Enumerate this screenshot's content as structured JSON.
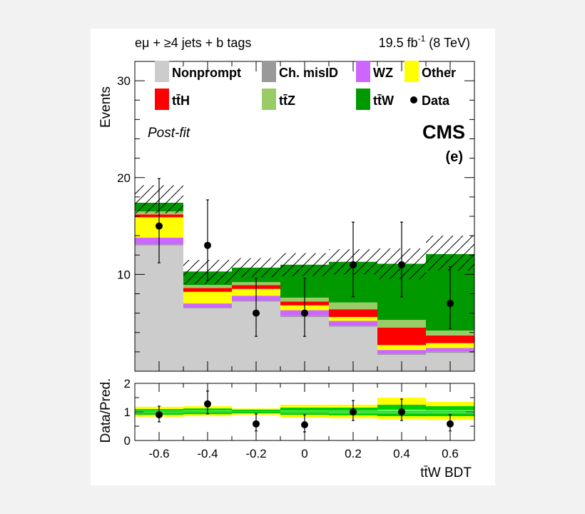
{
  "figure": {
    "header_left": "eμ + ≥4 jets + b tags",
    "header_right_lumi": "19.5 fb",
    "header_right_exp": "-1",
    "header_right_energy": " (8 TeV)",
    "experiment": "CMS",
    "panel": "(e)",
    "fit_note": "Post-fit"
  },
  "legend": [
    {
      "label": "Nonprompt",
      "color": "#cccccc"
    },
    {
      "label": "Ch. misID",
      "color": "#999999"
    },
    {
      "label": "WZ",
      "color": "#cc66ff"
    },
    {
      "label": "Other",
      "color": "#ffff00"
    },
    {
      "label": "tt̄H",
      "color": "#ff0000"
    },
    {
      "label": "tt̄Z",
      "color": "#99cc66"
    },
    {
      "label": "tt̄W",
      "color": "#009900"
    },
    {
      "label": "Data",
      "color": "#000000"
    }
  ],
  "chart_data": [
    {
      "type": "bar",
      "stacked": true,
      "xlabel": "tt̄W BDT",
      "ylabel": "Events",
      "xlim": [
        -0.7,
        0.7
      ],
      "ylim": [
        0,
        32
      ],
      "yticks": [
        10,
        20,
        30
      ],
      "xticks": [
        -0.6,
        -0.4,
        -0.2,
        0,
        0.2,
        0.4,
        0.6
      ],
      "bin_edges": [
        -0.7,
        -0.5,
        -0.3,
        -0.1,
        0.1,
        0.3,
        0.5,
        0.7
      ],
      "series": [
        {
          "name": "Nonprompt",
          "color": "#cccccc",
          "values": [
            13.0,
            6.5,
            7.2,
            5.6,
            4.6,
            1.7,
            1.9
          ]
        },
        {
          "name": "Ch. misID",
          "color": "#999999",
          "values": [
            0.1,
            0.1,
            0.1,
            0.1,
            0.1,
            0.1,
            0.1
          ]
        },
        {
          "name": "WZ",
          "color": "#cc66ff",
          "values": [
            0.7,
            0.4,
            0.5,
            0.6,
            0.5,
            0.4,
            0.4
          ]
        },
        {
          "name": "Other",
          "color": "#ffff00",
          "values": [
            2.1,
            1.2,
            0.7,
            0.5,
            0.4,
            0.5,
            0.5
          ]
        },
        {
          "name": "tt̄H",
          "color": "#ff0000",
          "values": [
            0.3,
            0.4,
            0.4,
            0.4,
            0.8,
            1.8,
            0.8
          ]
        },
        {
          "name": "tt̄Z",
          "color": "#99cc66",
          "values": [
            0.3,
            0.3,
            0.3,
            0.4,
            0.7,
            0.8,
            0.5
          ]
        },
        {
          "name": "tt̄W",
          "color": "#009900",
          "values": [
            0.9,
            1.4,
            1.5,
            3.4,
            4.2,
            5.8,
            7.9
          ]
        }
      ],
      "uncertainty_band": [
        [
          16.3,
          19.2
        ],
        [
          9.0,
          11.5
        ],
        [
          9.7,
          11.7
        ],
        [
          9.8,
          12.2
        ],
        [
          10.0,
          12.6
        ],
        [
          9.5,
          12.7
        ],
        [
          10.4,
          14.0
        ]
      ],
      "data": {
        "x": [
          -0.6,
          -0.4,
          -0.2,
          0,
          0.2,
          0.4,
          0.6
        ],
        "y": [
          15,
          13,
          6,
          6,
          11,
          11,
          7
        ],
        "err_low": [
          3.8,
          3.6,
          2.4,
          2.4,
          3.3,
          3.3,
          2.6
        ],
        "err_high": [
          4.9,
          4.7,
          3.6,
          3.6,
          4.4,
          4.4,
          3.8
        ]
      }
    },
    {
      "type": "scatter",
      "xlabel": "tt̄W BDT",
      "ylabel": "Data/Pred.",
      "xlim": [
        -0.7,
        0.7
      ],
      "ylim": [
        0,
        2
      ],
      "yticks": [
        0,
        1,
        2
      ],
      "band_yellow": [
        [
          0.83,
          1.18
        ],
        [
          0.85,
          1.2
        ],
        [
          0.9,
          1.12
        ],
        [
          0.8,
          1.25
        ],
        [
          0.78,
          1.25
        ],
        [
          0.75,
          1.5
        ],
        [
          0.72,
          1.35
        ]
      ],
      "band_green": [
        [
          0.9,
          1.1
        ],
        [
          0.92,
          1.12
        ],
        [
          0.95,
          1.08
        ],
        [
          0.9,
          1.15
        ],
        [
          0.88,
          1.15
        ],
        [
          0.85,
          1.25
        ],
        [
          0.85,
          1.2
        ]
      ],
      "band_lightgreen": [
        [
          0.96,
          1.04
        ],
        [
          0.97,
          1.05
        ],
        [
          0.98,
          1.03
        ],
        [
          0.96,
          1.05
        ],
        [
          0.95,
          1.05
        ],
        [
          0.95,
          1.08
        ],
        [
          0.95,
          1.06
        ]
      ],
      "ratio": {
        "x": [
          -0.6,
          -0.4,
          -0.2,
          0,
          0.2,
          0.4,
          0.6
        ],
        "y": [
          0.9,
          1.28,
          0.58,
          0.55,
          1.0,
          1.0,
          0.58
        ],
        "err_low": [
          0.25,
          0.35,
          0.25,
          0.25,
          0.3,
          0.3,
          0.25
        ],
        "err_high": [
          0.3,
          0.45,
          0.35,
          0.35,
          0.4,
          0.45,
          0.33
        ]
      }
    }
  ]
}
